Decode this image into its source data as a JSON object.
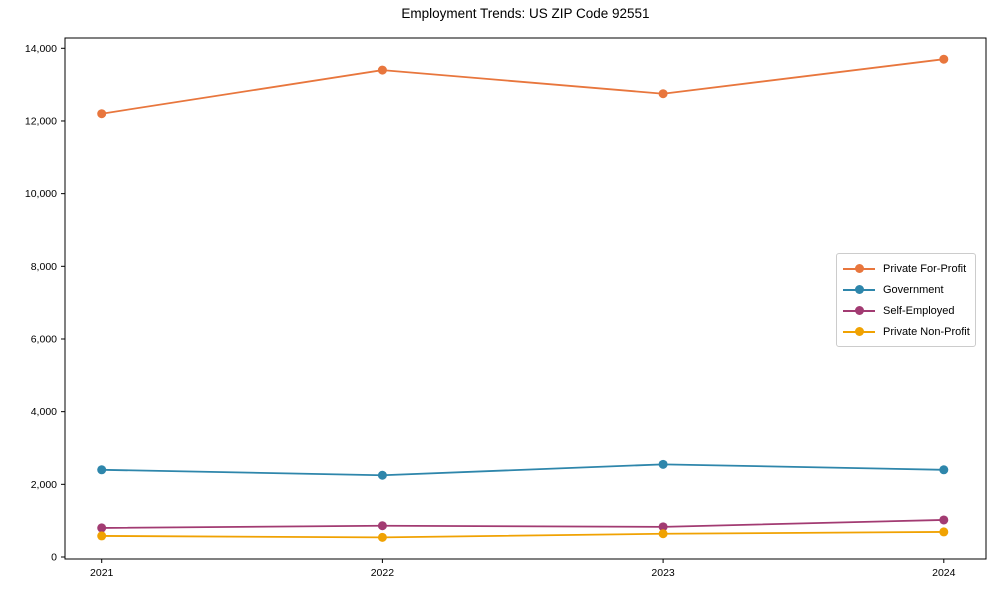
{
  "chart_data": {
    "type": "line",
    "title": "Employment Trends: US ZIP Code 92551",
    "categories": [
      "2021",
      "2022",
      "2023",
      "2024"
    ],
    "series": [
      {
        "name": "Private For-Profit",
        "color": "#e8763d",
        "values": [
          12200,
          13400,
          12750,
          13700
        ]
      },
      {
        "name": "Government",
        "color": "#2e86ab",
        "values": [
          2400,
          2250,
          2550,
          2400
        ]
      },
      {
        "name": "Self-Employed",
        "color": "#a23b72",
        "values": [
          800,
          860,
          830,
          1020
        ]
      },
      {
        "name": "Private Non-Profit",
        "color": "#f0a202",
        "values": [
          580,
          540,
          640,
          690
        ]
      }
    ],
    "xlabel": "",
    "ylabel": "",
    "ylim": [
      0,
      14000
    ],
    "ytick_step": 2000,
    "ytick_labels": [
      "0",
      "2,000",
      "4,000",
      "6,000",
      "8,000",
      "10,000",
      "12,000",
      "14,000"
    ],
    "grid": false,
    "legend_position": "center-right",
    "marker": "circle",
    "axis_color": "#000000",
    "background_color": "#ffffff"
  }
}
